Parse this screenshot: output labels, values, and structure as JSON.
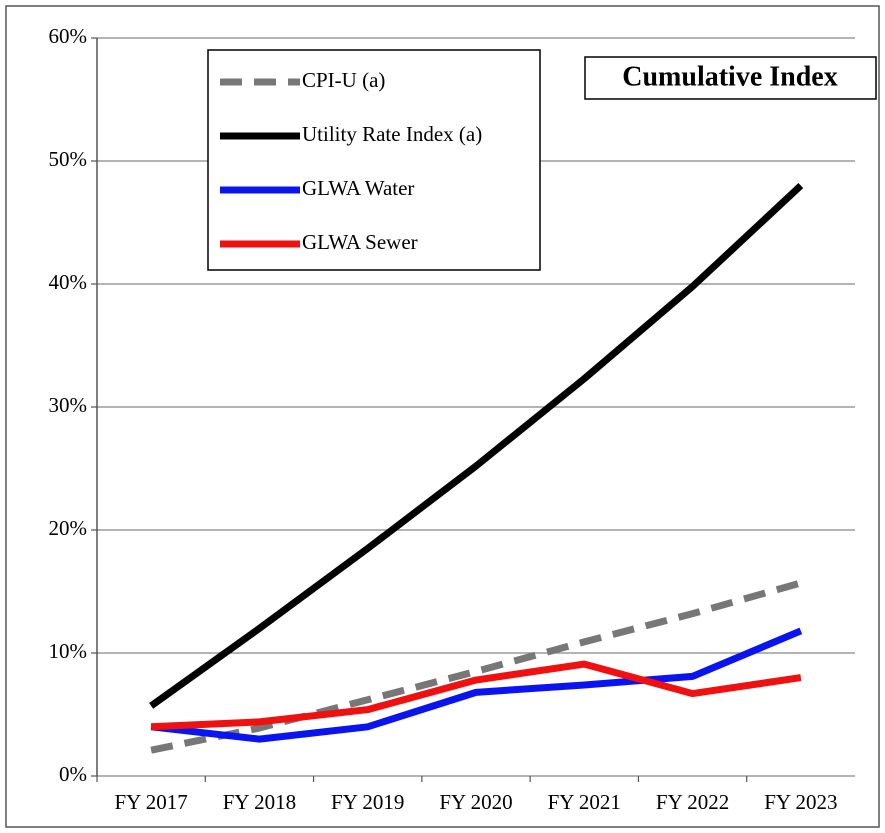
{
  "chart_data": {
    "type": "line",
    "annotation": "Cumulative Index",
    "categories": [
      "FY 2017",
      "FY 2018",
      "FY 2019",
      "FY 2020",
      "FY 2021",
      "FY 2022",
      "FY 2023"
    ],
    "series": [
      {
        "name": "CPI-U (a)",
        "color": "#777777",
        "style": "dashed",
        "values": [
          2.1,
          3.9,
          6.2,
          8.5,
          10.9,
          13.2,
          15.7
        ]
      },
      {
        "name": "Utility Rate Index (a)",
        "color": "#000000",
        "style": "solid",
        "values": [
          5.7,
          12,
          18.5,
          25.2,
          32.3,
          39.8,
          48
        ]
      },
      {
        "name": "GLWA Water",
        "color": "#0a14f0",
        "style": "solid",
        "values": [
          4.0,
          3.0,
          4.0,
          6.8,
          7.4,
          8.1,
          11.8
        ]
      },
      {
        "name": "GLWA Sewer",
        "color": "#f01010",
        "style": "solid",
        "values": [
          4.0,
          4.4,
          5.4,
          7.8,
          9.1,
          6.7,
          8.0
        ]
      }
    ],
    "ylim": [
      0,
      60
    ],
    "yticks": [
      {
        "value": 0,
        "label": "0%"
      },
      {
        "value": 10,
        "label": "10%"
      },
      {
        "value": 20,
        "label": "20%"
      },
      {
        "value": 30,
        "label": "30%"
      },
      {
        "value": 40,
        "label": "40%"
      },
      {
        "value": 50,
        "label": "50%"
      },
      {
        "value": 60,
        "label": "60%"
      }
    ],
    "grid": true,
    "legend": "upper-left"
  }
}
